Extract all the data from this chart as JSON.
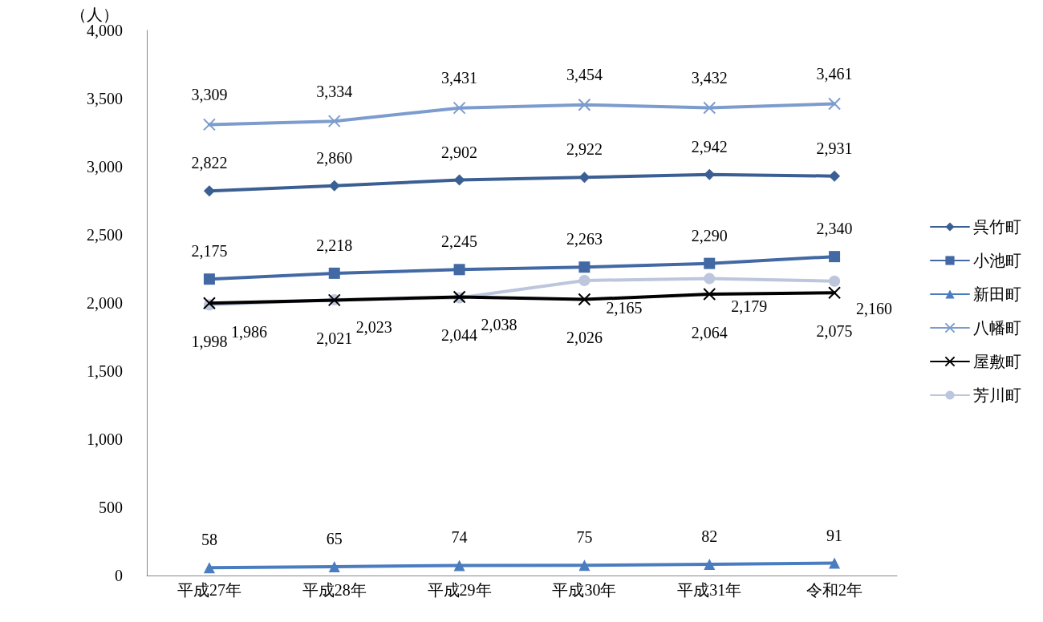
{
  "chart_data": {
    "type": "line",
    "ylabel": "（人）",
    "categories": [
      "平成27年",
      "平成28年",
      "平成29年",
      "平成30年",
      "平成31年",
      "令和2年"
    ],
    "ylim": [
      0,
      4000
    ],
    "yticks": [
      0,
      500,
      {
        "value": 1000,
        "label": "1,000"
      },
      {
        "value": 1500,
        "label": "1,500"
      },
      {
        "value": 2000,
        "label": "2,000"
      },
      {
        "value": 2500,
        "label": "2,500"
      },
      {
        "value": 3000,
        "label": "3,000"
      },
      {
        "value": 3500,
        "label": "3,500"
      },
      {
        "value": 4000,
        "label": "4,000"
      }
    ],
    "grid": false,
    "legend": "right",
    "series": [
      {
        "name": "呉竹町",
        "color": "#3b5f92",
        "marker": "diamond",
        "values": [
          2822,
          2860,
          2902,
          2922,
          2942,
          2931
        ],
        "value_labels": [
          "2,822",
          "2,860",
          "2,902",
          "2,922",
          "2,942",
          "2,931"
        ]
      },
      {
        "name": "小池町",
        "color": "#4369a5",
        "marker": "square",
        "values": [
          2175,
          2218,
          2245,
          2263,
          2290,
          2340
        ],
        "value_labels": [
          "2,175",
          "2,218",
          "2,245",
          "2,263",
          "2,290",
          "2,340"
        ]
      },
      {
        "name": "新田町",
        "color": "#4a7dc0",
        "marker": "triangle",
        "values": [
          58,
          65,
          74,
          75,
          82,
          91
        ],
        "value_labels": [
          "58",
          "65",
          "74",
          "75",
          "82",
          "91"
        ]
      },
      {
        "name": "八幡町",
        "color": "#7c9ccd",
        "marker": "cross",
        "values": [
          3309,
          3334,
          3431,
          3454,
          3432,
          3461
        ],
        "value_labels": [
          "3,309",
          "3,334",
          "3,431",
          "3,454",
          "3,432",
          "3,461"
        ]
      },
      {
        "name": "屋敷町",
        "color": "#000000",
        "marker": "cross",
        "values": [
          1998,
          2021,
          2044,
          2026,
          2064,
          2075
        ],
        "value_labels": [
          "1,998",
          "2,021",
          "2,044",
          "2,026",
          "2,064",
          "2,075"
        ]
      },
      {
        "name": "芳川町",
        "color": "#bcc6dc",
        "marker": "circle",
        "values": [
          1986,
          2023,
          2038,
          2165,
          2179,
          2160
        ],
        "value_labels": [
          "1,986",
          "2,023",
          "2,038",
          "2,165",
          "2,179",
          "2,160"
        ]
      }
    ]
  }
}
